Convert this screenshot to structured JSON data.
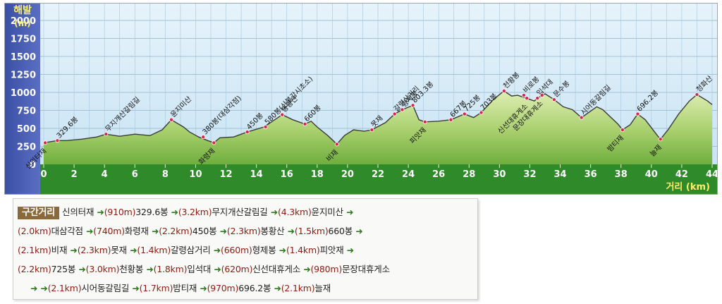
{
  "chart_data": {
    "type": "area",
    "ylabel": "해발\n(m)",
    "xlabel": "거리 (km)",
    "xlim": [
      0,
      44
    ],
    "ylim": [
      0,
      2000
    ],
    "x_ticks": [
      0,
      2,
      4,
      6,
      8,
      10,
      12,
      14,
      16,
      18,
      20,
      22,
      24,
      26,
      28,
      30,
      32,
      34,
      36,
      38,
      40,
      42,
      44
    ],
    "y_ticks": [
      0,
      250,
      500,
      750,
      1000,
      1250,
      1500,
      1750,
      2000
    ],
    "profile": [
      [
        0,
        300
      ],
      [
        0.9,
        330
      ],
      [
        1.5,
        330
      ],
      [
        2.5,
        350
      ],
      [
        3.5,
        380
      ],
      [
        4.1,
        420
      ],
      [
        5,
        390
      ],
      [
        6,
        420
      ],
      [
        7,
        400
      ],
      [
        7.8,
        480
      ],
      [
        8.4,
        620
      ],
      [
        9.2,
        520
      ],
      [
        9.6,
        450
      ],
      [
        10.2,
        380
      ],
      [
        10.8,
        330
      ],
      [
        11.2,
        300
      ],
      [
        11.6,
        370
      ],
      [
        12.5,
        380
      ],
      [
        13.4,
        450
      ],
      [
        14.5,
        520
      ],
      [
        15.7,
        690
      ],
      [
        16.4,
        620
      ],
      [
        17.2,
        560
      ],
      [
        17.6,
        600
      ],
      [
        18,
        520
      ],
      [
        18.7,
        400
      ],
      [
        19.3,
        280
      ],
      [
        19.8,
        400
      ],
      [
        20.4,
        480
      ],
      [
        21.1,
        460
      ],
      [
        21.6,
        480
      ],
      [
        22.5,
        580
      ],
      [
        23.1,
        700
      ],
      [
        23.6,
        760
      ],
      [
        24.3,
        820
      ],
      [
        24.7,
        620
      ],
      [
        25.1,
        590
      ],
      [
        26,
        600
      ],
      [
        26.8,
        620
      ],
      [
        27.7,
        700
      ],
      [
        28.3,
        650
      ],
      [
        28.8,
        720
      ],
      [
        29.6,
        900
      ],
      [
        30.3,
        1020
      ],
      [
        30.8,
        950
      ],
      [
        31.2,
        960
      ],
      [
        32.3,
        880
      ],
      [
        32.5,
        920
      ],
      [
        33,
        980
      ],
      [
        33.6,
        900
      ],
      [
        34.2,
        800
      ],
      [
        34.8,
        760
      ],
      [
        35.4,
        650
      ],
      [
        36.4,
        800
      ],
      [
        36.8,
        760
      ],
      [
        37.8,
        560
      ],
      [
        38.1,
        480
      ],
      [
        38.6,
        550
      ],
      [
        39.1,
        700
      ],
      [
        39.6,
        620
      ],
      [
        40.4,
        400
      ],
      [
        40.6,
        350
      ],
      [
        41.1,
        480
      ],
      [
        41.8,
        700
      ],
      [
        42.5,
        880
      ],
      [
        43,
        970
      ],
      [
        43.7,
        880
      ],
      [
        44,
        830
      ]
    ],
    "annotations": [
      {
        "label": "신의터재",
        "x": 0.1,
        "y": 300,
        "below": true
      },
      {
        "label": "329.6봉",
        "x": 0.9,
        "y": 330
      },
      {
        "label": "무지개산갈림길",
        "x": 4.1,
        "y": 420
      },
      {
        "label": "윤지미산",
        "x": 8.4,
        "y": 620
      },
      {
        "label": "화령재",
        "x": 11.2,
        "y": 300,
        "below": true
      },
      {
        "label": "380봉(대삼각점)",
        "x": 10.5,
        "y": 380
      },
      {
        "label": "450봉",
        "x": 13.4,
        "y": 450
      },
      {
        "label": "580봉(산불감시초소)",
        "x": 14.6,
        "y": 520
      },
      {
        "label": "봉황산",
        "x": 15.7,
        "y": 690
      },
      {
        "label": "660봉",
        "x": 17.2,
        "y": 560
      },
      {
        "label": "비재",
        "x": 19.3,
        "y": 280,
        "below": true
      },
      {
        "label": "못재",
        "x": 21.6,
        "y": 480
      },
      {
        "label": "갈령삼거리",
        "x": 23.1,
        "y": 700
      },
      {
        "label": "형제봉",
        "x": 23.6,
        "y": 760
      },
      {
        "label": "803.3봉",
        "x": 24.3,
        "y": 820
      },
      {
        "label": "피앗재",
        "x": 25.1,
        "y": 590,
        "below": true
      },
      {
        "label": "667봉",
        "x": 26.8,
        "y": 620
      },
      {
        "label": "725봉",
        "x": 27.7,
        "y": 700
      },
      {
        "label": "703봉",
        "x": 28.8,
        "y": 720
      },
      {
        "label": "천황봉",
        "x": 30.3,
        "y": 1020
      },
      {
        "label": "비로봉",
        "x": 31.6,
        "y": 960
      },
      {
        "label": "신선대휴게소",
        "x": 31.8,
        "y": 920,
        "below": true
      },
      {
        "label": "입석대",
        "x": 32.5,
        "y": 920
      },
      {
        "label": "문장대휴게소",
        "x": 32.8,
        "y": 960,
        "below": true
      },
      {
        "label": "문수봉",
        "x": 33.6,
        "y": 900
      },
      {
        "label": "시어동갈림길",
        "x": 35.4,
        "y": 650
      },
      {
        "label": "밤티재",
        "x": 38.1,
        "y": 480,
        "below": true
      },
      {
        "label": "696.2봉",
        "x": 39.1,
        "y": 700
      },
      {
        "label": "늘재",
        "x": 40.6,
        "y": 350,
        "below": true
      },
      {
        "label": "청화산",
        "x": 43,
        "y": 970
      }
    ]
  },
  "legend": {
    "title": "구간거리",
    "arrow": "➜",
    "lines": [
      [
        {
          "p": "신의터재"
        },
        {
          "d": "(910m)"
        },
        {
          "p": "329.6봉"
        },
        {
          "d": "(3.2km)"
        },
        {
          "p": "무지개산갈림길"
        },
        {
          "d": "(4.3km)"
        },
        {
          "p": "윤지미산"
        },
        {
          "a": true
        }
      ],
      [
        {
          "d": "(2.0km)"
        },
        {
          "p": "대삼각점"
        },
        {
          "d": "(740m)"
        },
        {
          "p": "화령재"
        },
        {
          "d": "(2.2km)"
        },
        {
          "p": "450봉"
        },
        {
          "d": "(2.3km)"
        },
        {
          "p": "봉황산"
        },
        {
          "d": "(1.5km)"
        },
        {
          "p": "660봉"
        },
        {
          "a": true
        }
      ],
      [
        {
          "d": "(2.1km)"
        },
        {
          "p": "비재"
        },
        {
          "d": "(2.3km)"
        },
        {
          "p": "못재"
        },
        {
          "d": "(1.4km)"
        },
        {
          "p": "갈령삼거리"
        },
        {
          "d": "(660m)"
        },
        {
          "p": "형제봉"
        },
        {
          "d": "(1.4km)"
        },
        {
          "p": "피앗재"
        },
        {
          "a": true
        }
      ],
      [
        {
          "d": "(2.2km)"
        },
        {
          "p": "725봉"
        },
        {
          "d": "(3.0km)"
        },
        {
          "p": "천황봉"
        },
        {
          "d": "(1.8km)"
        },
        {
          "p": "입석대"
        },
        {
          "d": "(620m)"
        },
        {
          "p": "신선대휴게소"
        },
        {
          "d": "(980m)"
        },
        {
          "p": "문장대휴게소"
        }
      ],
      [
        {
          "a": true
        },
        {
          "d": "(2.1km)"
        },
        {
          "p": "시어동갈림길"
        },
        {
          "d": "(1.7km)"
        },
        {
          "p": "밤티재"
        },
        {
          "d": "(970m)"
        },
        {
          "p": "696.2봉"
        },
        {
          "d": "(2.1km)"
        },
        {
          "p": "늘재"
        }
      ]
    ]
  }
}
